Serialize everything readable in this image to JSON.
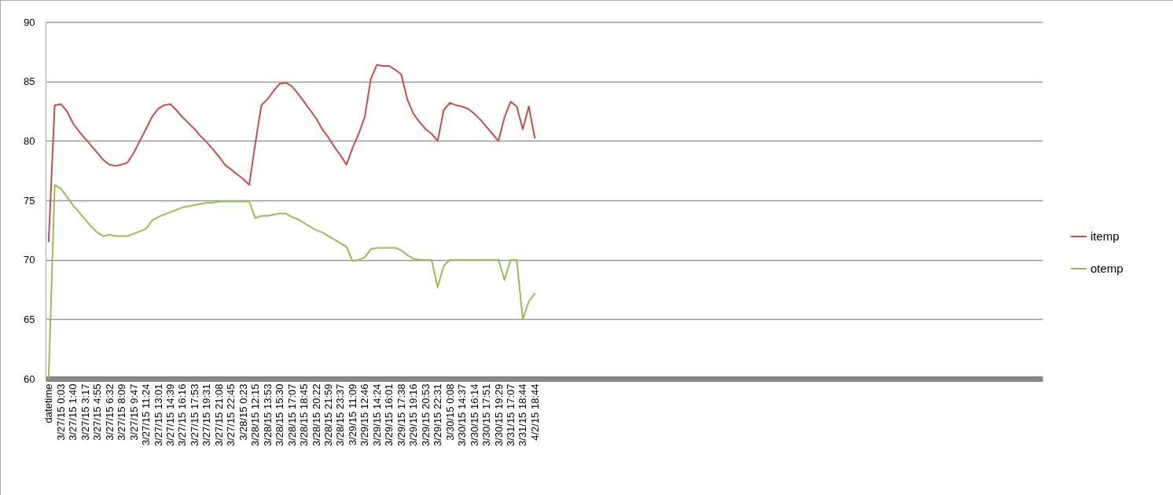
{
  "chart_data": {
    "type": "line",
    "categories": [
      "datetime",
      null,
      "3/27/15 0:03",
      null,
      "3/27/15 1:40",
      null,
      "3/27/15 3:17",
      null,
      "3/27/15 4:55",
      null,
      "3/27/15 6:32",
      null,
      "3/27/15 8:09",
      null,
      "3/27/15 9:47",
      null,
      "3/27/15 11:24",
      null,
      "3/27/15 13:01",
      null,
      "3/27/15 14:39",
      null,
      "3/27/15 16:16",
      null,
      "3/27/15 17:53",
      null,
      "3/27/15 19:31",
      null,
      "3/27/15 21:08",
      null,
      "3/27/15 22:45",
      null,
      "3/28/15 0:23",
      null,
      "3/28/15 12:15",
      null,
      "3/28/15 13:53",
      null,
      "3/28/15 15:30",
      null,
      "3/28/15 17:07",
      null,
      "3/28/15 18:45",
      null,
      "3/28/15 20:22",
      null,
      "3/28/15 21:59",
      null,
      "3/28/15 23:37",
      null,
      "3/29/15 11:09",
      null,
      "3/29/15 12:46",
      null,
      "3/29/15 14:24",
      null,
      "3/29/15 16:01",
      null,
      "3/29/15 17:38",
      null,
      "3/29/15 19:16",
      null,
      "3/29/15 20:53",
      null,
      "3/29/15 22:31",
      null,
      "3/30/15 0:08",
      null,
      "3/30/15 14:37",
      null,
      "3/30/15 16:14",
      null,
      "3/30/15 17:51",
      null,
      "3/30/15 19:29",
      null,
      "3/31/15 17:07",
      null,
      "3/31/15 18:44",
      null,
      "4/2/15 18:44",
      null,
      null,
      null,
      null,
      null,
      null,
      null,
      null,
      null,
      null,
      null,
      null,
      null,
      null,
      null,
      null,
      null,
      null,
      null,
      null,
      null,
      null,
      null,
      null,
      null,
      null,
      null,
      null,
      null,
      null,
      null,
      null,
      null,
      null,
      null,
      null,
      null,
      null,
      null,
      null,
      null,
      null,
      null,
      null,
      null,
      null,
      null,
      null,
      null,
      null,
      null,
      null,
      null,
      null,
      null,
      null,
      null,
      null,
      null,
      null,
      null,
      null,
      null,
      null,
      null,
      null,
      null,
      null,
      null,
      null,
      null,
      null,
      null,
      null,
      null,
      null,
      null,
      null,
      null,
      null,
      null,
      null,
      null
    ],
    "series": [
      {
        "name": "itemp",
        "color": "#c0504d",
        "values": [
          71.5,
          83.0,
          83.1,
          82.5,
          81.5,
          80.8,
          80.2,
          79.6,
          79.0,
          78.4,
          78.0,
          77.9,
          78.0,
          78.2,
          79.0,
          80.0,
          81.0,
          82.0,
          82.7,
          83.0,
          83.1,
          82.6,
          82.0,
          81.5,
          81.0,
          80.4,
          79.9,
          79.3,
          78.7,
          78.0,
          77.6,
          77.2,
          76.8,
          76.3,
          79.8,
          83.0,
          83.5,
          84.2,
          84.8,
          84.9,
          84.6,
          84.0,
          83.3,
          82.6,
          81.9,
          81.0,
          80.3,
          79.5,
          78.8,
          78.0,
          79.4,
          80.6,
          82.0,
          85.2,
          86.4,
          86.3,
          86.3,
          86.0,
          85.6,
          83.5,
          82.3,
          81.6,
          81.0,
          80.6,
          80.0,
          82.6,
          83.2,
          83.0,
          82.9,
          82.7,
          82.3,
          81.8,
          81.2,
          80.6,
          80.0,
          82.0,
          83.3,
          82.9,
          81.0,
          82.9,
          80.2,
          null,
          null,
          null,
          null,
          null,
          null,
          null,
          null,
          null,
          null,
          null,
          null,
          null,
          null,
          null,
          null,
          null,
          null,
          null,
          null,
          null,
          null,
          null,
          null,
          null,
          null,
          null,
          null,
          null,
          null,
          null,
          null,
          null,
          null,
          null,
          null,
          null,
          null,
          null,
          null,
          null,
          null,
          null,
          null,
          null,
          null,
          null,
          null,
          null,
          null,
          null,
          null,
          null,
          null,
          null,
          null,
          null,
          null,
          null,
          null,
          null,
          null,
          null,
          null,
          null,
          null,
          null,
          null,
          null,
          null,
          null,
          null,
          null,
          null,
          null,
          null,
          null,
          null,
          null,
          null,
          null,
          null,
          null
        ]
      },
      {
        "name": "otemp",
        "color": "#9bbb59",
        "values": [
          60,
          76.3,
          76.0,
          75.3,
          74.6,
          74.0,
          73.4,
          72.8,
          72.3,
          72.0,
          72.1,
          72.0,
          72.0,
          72.0,
          72.2,
          72.4,
          72.6,
          73.3,
          73.6,
          73.8,
          74.0,
          74.2,
          74.4,
          74.5,
          74.6,
          74.7,
          74.8,
          74.8,
          74.9,
          74.9,
          74.9,
          74.9,
          74.9,
          74.9,
          73.5,
          73.7,
          73.7,
          73.8,
          73.9,
          73.9,
          73.6,
          73.4,
          73.1,
          72.8,
          72.5,
          72.3,
          72.0,
          71.7,
          71.4,
          71.1,
          69.9,
          70.0,
          70.2,
          70.9,
          71.0,
          71.0,
          71.0,
          71.0,
          70.8,
          70.4,
          70.1,
          70.0,
          70.0,
          70.0,
          67.7,
          69.5,
          70.0,
          70.0,
          70.0,
          70.0,
          70.0,
          70.0,
          70.0,
          70.0,
          70.0,
          68.3,
          70.0,
          70.0,
          65.0,
          66.5,
          67.2,
          null,
          null,
          null,
          null,
          null,
          null,
          null,
          null,
          null,
          null,
          null,
          null,
          null,
          null,
          null,
          null,
          null,
          null,
          null,
          null,
          null,
          null,
          null,
          null,
          null,
          null,
          null,
          null,
          null,
          null,
          null,
          null,
          null,
          null,
          null,
          null,
          null,
          null,
          null,
          null,
          null,
          null,
          null,
          null,
          null,
          null,
          null,
          null,
          null,
          null,
          null,
          null,
          null,
          null,
          null,
          null,
          null,
          null,
          null,
          null,
          null,
          null,
          null,
          null,
          null,
          null,
          null,
          null,
          null,
          null,
          null,
          null,
          null,
          null,
          null,
          null,
          null,
          null,
          null,
          null,
          null,
          null,
          null
        ]
      }
    ],
    "ylim": [
      60,
      90
    ],
    "yticks": [
      60,
      65,
      70,
      75,
      80,
      85,
      90
    ],
    "grid": "y",
    "legend": "right"
  }
}
